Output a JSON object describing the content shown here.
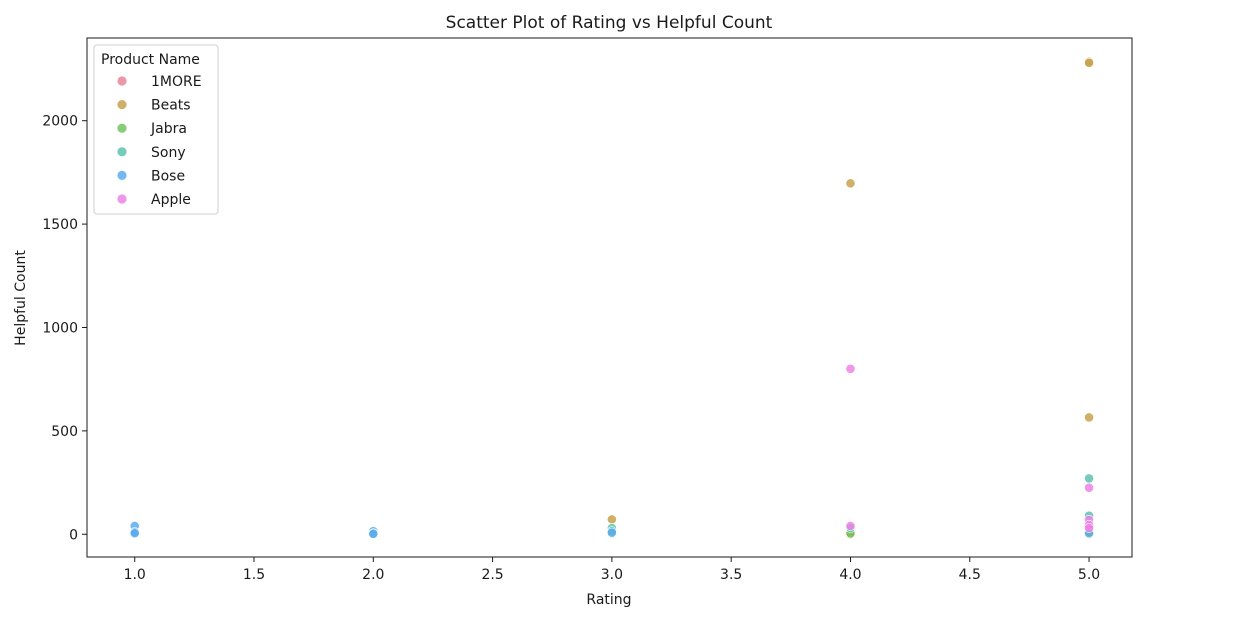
{
  "chart_data": {
    "type": "scatter",
    "title": "Scatter Plot of Rating vs Helpful Count",
    "xlabel": "Rating",
    "ylabel": "Helpful Count",
    "xlim": [
      0.8,
      5.18
    ],
    "ylim": [
      -110,
      2400
    ],
    "xticks": [
      1.0,
      1.5,
      2.0,
      2.5,
      3.0,
      3.5,
      4.0,
      4.5,
      5.0
    ],
    "xtick_labels": [
      "1.0",
      "1.5",
      "2.0",
      "2.5",
      "3.0",
      "3.5",
      "4.0",
      "4.5",
      "5.0"
    ],
    "yticks": [
      0,
      500,
      1000,
      1500,
      2000
    ],
    "ytick_labels": [
      "0",
      "500",
      "1000",
      "1500",
      "2000"
    ],
    "grid": false,
    "legend": {
      "title": "Product Name",
      "placement": "top-left"
    },
    "series": [
      {
        "name": "1MORE",
        "color": "#e8849a",
        "x": [
          5,
          5,
          4
        ],
        "y": [
          20,
          5,
          2
        ]
      },
      {
        "name": "Beats",
        "color": "#c8a24f",
        "x": [
          5,
          5,
          5,
          4,
          4,
          4,
          3,
          3,
          5
        ],
        "y": [
          2285,
          2280,
          565,
          1697,
          2,
          0,
          72,
          3,
          3
        ]
      },
      {
        "name": "Jabra",
        "color": "#74c35e",
        "x": [
          5,
          4,
          3
        ],
        "y": [
          10,
          4,
          5
        ]
      },
      {
        "name": "Sony",
        "color": "#5dc2b0",
        "x": [
          5,
          5,
          3,
          3,
          1,
          4
        ],
        "y": [
          270,
          90,
          30,
          15,
          12,
          30
        ]
      },
      {
        "name": "Bose",
        "color": "#5aacef",
        "x": [
          1,
          1,
          1,
          2,
          2,
          2,
          3,
          5
        ],
        "y": [
          40,
          10,
          5,
          15,
          5,
          2,
          8,
          5
        ]
      },
      {
        "name": "Apple",
        "color": "#ec82e6",
        "x": [
          4,
          5,
          5,
          5,
          5,
          4
        ],
        "y": [
          800,
          225,
          70,
          45,
          30,
          40
        ]
      }
    ]
  }
}
